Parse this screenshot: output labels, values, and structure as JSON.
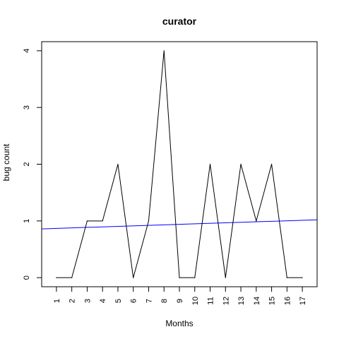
{
  "chart_data": {
    "type": "line",
    "title": "curator",
    "xlabel": "Months",
    "ylabel": "bug count",
    "x": [
      1,
      2,
      3,
      4,
      5,
      6,
      7,
      8,
      9,
      10,
      11,
      12,
      13,
      14,
      15,
      16,
      17
    ],
    "xticks": [
      "1",
      "2",
      "3",
      "4",
      "5",
      "6",
      "7",
      "8",
      "9",
      "10",
      "11",
      "12",
      "13",
      "14",
      "15",
      "16",
      "17"
    ],
    "yticks": [
      "0",
      "1",
      "2",
      "3",
      "4"
    ],
    "xlim": [
      0.04,
      17.96
    ],
    "ylim": [
      -0.16,
      4.16
    ],
    "grid": false,
    "series": [
      {
        "values": [
          0,
          0,
          1,
          1,
          2,
          0,
          1,
          4,
          0,
          0,
          2,
          0,
          2,
          1,
          2,
          0,
          0
        ],
        "color": "#000000"
      }
    ],
    "trend_line": {
      "x": [
        0.04,
        17.96
      ],
      "y": [
        0.86,
        1.02
      ],
      "color": "#0000ff"
    }
  }
}
